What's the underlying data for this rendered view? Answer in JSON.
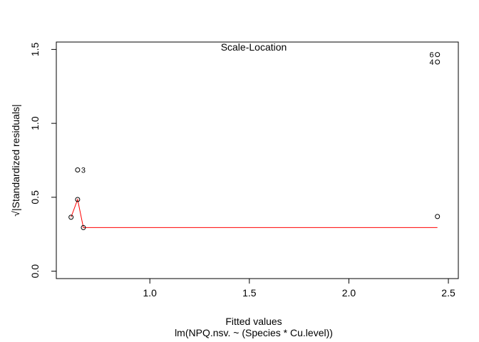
{
  "chart_data": {
    "type": "scatter",
    "title": "Scale-Location",
    "xlabel": "Fitted values",
    "subtitle": "lm(NPQ.nsv. ~ (Species * Cu.level))",
    "ylabel": "√|Standardized residuals|",
    "xlim": [
      0.53,
      2.55
    ],
    "ylim": [
      -0.05,
      1.55
    ],
    "x_ticks": [
      1.0,
      1.5,
      2.0,
      2.5
    ],
    "x_tick_labels": [
      "1.0",
      "1.5",
      "2.0",
      "2.5"
    ],
    "y_ticks": [
      0.0,
      0.5,
      1.0,
      1.5
    ],
    "y_tick_labels": [
      "0.0",
      "0.5",
      "1.0",
      "1.5"
    ],
    "grid": false,
    "points": [
      {
        "x": 0.604,
        "y": 0.365,
        "label": ""
      },
      {
        "x": 0.637,
        "y": 0.685,
        "label": "3"
      },
      {
        "x": 0.637,
        "y": 0.485,
        "label": ""
      },
      {
        "x": 0.666,
        "y": 0.295,
        "label": ""
      },
      {
        "x": 2.445,
        "y": 1.465,
        "label": "6"
      },
      {
        "x": 2.445,
        "y": 1.415,
        "label": "4"
      },
      {
        "x": 2.445,
        "y": 0.37,
        "label": ""
      }
    ],
    "smooth_line": {
      "color": "#ff0000",
      "x": [
        0.604,
        0.637,
        0.666,
        2.445
      ],
      "y": [
        0.365,
        0.485,
        0.295,
        0.295
      ]
    },
    "point_color": "#000000"
  }
}
